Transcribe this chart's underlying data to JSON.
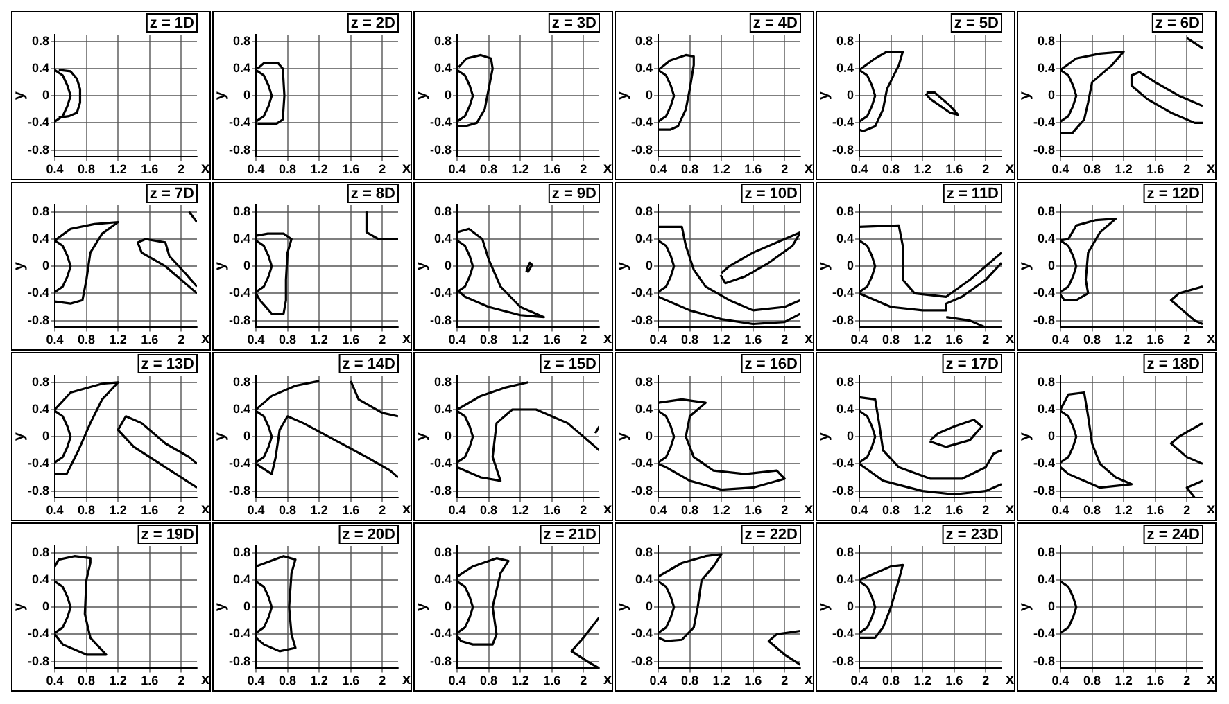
{
  "chart_data": [
    {
      "type": "line",
      "title": "z = 1D",
      "xlabel": "x",
      "ylabel": "y",
      "xlim": [
        0.4,
        2.2
      ],
      "ylim": [
        -0.9,
        0.9
      ],
      "xticks": [
        0.4,
        0.8,
        1.2,
        1.6,
        2
      ],
      "yticks": [
        0.8,
        0.4,
        0,
        -0.4,
        -0.8
      ],
      "grid": true,
      "series": [
        {
          "color": "#000000",
          "x": [
            0.4,
            0.5,
            0.56,
            0.6,
            0.56,
            0.5,
            0.4
          ],
          "values": [
            0.38,
            0.3,
            0.15,
            0,
            -0.15,
            -0.3,
            -0.38
          ]
        },
        {
          "color": "#000000",
          "x": [
            0.45,
            0.6,
            0.68,
            0.72,
            0.72,
            0.68,
            0.58,
            0.45
          ],
          "values": [
            0.38,
            0.36,
            0.25,
            0.1,
            -0.1,
            -0.25,
            -0.3,
            -0.32
          ]
        }
      ]
    },
    {
      "type": "line",
      "title": "z = 2D",
      "xlabel": "x",
      "ylabel": "y",
      "xlim": [
        0.4,
        2.2
      ],
      "ylim": [
        -0.9,
        0.9
      ],
      "xticks": [
        0.4,
        0.8,
        1.2,
        1.6,
        2
      ],
      "yticks": [
        0.8,
        0.4,
        0,
        -0.4,
        -0.8
      ],
      "grid": true,
      "series": [
        {
          "color": "#000000",
          "x": [
            0.4,
            0.5,
            0.56,
            0.6,
            0.56,
            0.5,
            0.4
          ],
          "values": [
            0.38,
            0.3,
            0.15,
            0,
            -0.15,
            -0.3,
            -0.38
          ]
        },
        {
          "color": "#000000",
          "x": [
            0.42,
            0.5,
            0.68,
            0.74,
            0.76,
            0.74,
            0.65,
            0.42
          ],
          "values": [
            0.4,
            0.48,
            0.48,
            0.4,
            0,
            -0.35,
            -0.42,
            -0.42
          ]
        }
      ]
    },
    {
      "type": "line",
      "title": "z = 3D",
      "xlabel": "x",
      "ylabel": "y",
      "xlim": [
        0.4,
        2.2
      ],
      "ylim": [
        -0.9,
        0.9
      ],
      "xticks": [
        0.4,
        0.8,
        1.2,
        1.6,
        2
      ],
      "yticks": [
        0.8,
        0.4,
        0,
        -0.4,
        -0.8
      ],
      "grid": true,
      "series": [
        {
          "color": "#000000",
          "x": [
            0.4,
            0.5,
            0.56,
            0.6,
            0.56,
            0.5,
            0.4
          ],
          "values": [
            0.38,
            0.3,
            0.15,
            0,
            -0.15,
            -0.3,
            -0.38
          ]
        },
        {
          "color": "#000000",
          "x": [
            0.42,
            0.52,
            0.7,
            0.83,
            0.85,
            0.8,
            0.75,
            0.65,
            0.5,
            0.4
          ],
          "values": [
            0.42,
            0.55,
            0.6,
            0.55,
            0.4,
            0.1,
            -0.2,
            -0.4,
            -0.45,
            -0.45
          ]
        }
      ]
    },
    {
      "type": "line",
      "title": "z = 4D",
      "xlabel": "x",
      "ylabel": "y",
      "xlim": [
        0.4,
        2.2
      ],
      "ylim": [
        -0.9,
        0.9
      ],
      "xticks": [
        0.4,
        0.8,
        1.2,
        1.6,
        2
      ],
      "yticks": [
        0.8,
        0.4,
        0,
        -0.4,
        -0.8
      ],
      "grid": true,
      "series": [
        {
          "color": "#000000",
          "x": [
            0.4,
            0.5,
            0.56,
            0.6,
            0.56,
            0.5,
            0.4
          ],
          "values": [
            0.38,
            0.3,
            0.15,
            0,
            -0.15,
            -0.3,
            -0.38
          ]
        },
        {
          "color": "#000000",
          "x": [
            0.4,
            0.55,
            0.75,
            0.85,
            0.85,
            0.8,
            0.75,
            0.65,
            0.55,
            0.4
          ],
          "values": [
            0.38,
            0.52,
            0.6,
            0.58,
            0.45,
            0.1,
            -0.2,
            -0.45,
            -0.5,
            -0.5
          ]
        }
      ]
    },
    {
      "type": "line",
      "title": "z = 5D",
      "xlabel": "x",
      "ylabel": "y",
      "xlim": [
        0.4,
        2.2
      ],
      "ylim": [
        -0.9,
        0.9
      ],
      "xticks": [
        0.4,
        0.8,
        1.2,
        1.6,
        2
      ],
      "yticks": [
        0.8,
        0.4,
        0,
        -0.4,
        -0.8
      ],
      "grid": true,
      "series": [
        {
          "color": "#000000",
          "x": [
            0.4,
            0.5,
            0.56,
            0.6,
            0.56,
            0.5,
            0.4
          ],
          "values": [
            0.38,
            0.3,
            0.15,
            0,
            -0.15,
            -0.3,
            -0.38
          ]
        },
        {
          "color": "#000000",
          "x": [
            0.4,
            0.6,
            0.75,
            0.95,
            0.9,
            0.75,
            0.7,
            0.6,
            0.45,
            0.4
          ],
          "values": [
            0.38,
            0.55,
            0.65,
            0.65,
            0.45,
            0.1,
            -0.2,
            -0.45,
            -0.52,
            -0.5
          ]
        },
        {
          "color": "#000000",
          "x": [
            1.25,
            1.35,
            1.55,
            1.65,
            1.55,
            1.3,
            1.24
          ],
          "values": [
            0.05,
            0.05,
            -0.15,
            -0.28,
            -0.25,
            -0.05,
            0.03
          ]
        }
      ]
    },
    {
      "type": "line",
      "title": "z = 6D",
      "xlabel": "x",
      "ylabel": "y",
      "xlim": [
        0.4,
        2.2
      ],
      "ylim": [
        -0.9,
        0.9
      ],
      "xticks": [
        0.4,
        0.8,
        1.2,
        1.6,
        2
      ],
      "yticks": [
        0.8,
        0.4,
        0,
        -0.4,
        -0.8
      ],
      "grid": true,
      "series": [
        {
          "color": "#000000",
          "x": [
            0.4,
            0.5,
            0.56,
            0.6,
            0.56,
            0.5,
            0.4
          ],
          "values": [
            0.38,
            0.3,
            0.15,
            0,
            -0.15,
            -0.3,
            -0.38
          ]
        },
        {
          "color": "#000000",
          "x": [
            0.4,
            0.6,
            0.9,
            1.2,
            1.05,
            0.8,
            0.75,
            0.7,
            0.55,
            0.4
          ],
          "values": [
            0.38,
            0.55,
            0.62,
            0.65,
            0.45,
            0.2,
            -0.1,
            -0.35,
            -0.55,
            -0.55
          ]
        },
        {
          "color": "#000000",
          "x": [
            2.2,
            1.9,
            1.6,
            1.4,
            1.3,
            1.3,
            1.5,
            1.8,
            2.1,
            2.2
          ],
          "values": [
            -0.15,
            0,
            0.2,
            0.35,
            0.3,
            0.15,
            -0.05,
            -0.25,
            -0.4,
            -0.4
          ]
        },
        {
          "color": "#000000",
          "x": [
            2,
            2.2
          ],
          "values": [
            0.85,
            0.7
          ]
        }
      ]
    },
    {
      "type": "line",
      "title": "z = 7D",
      "xlabel": "x",
      "ylabel": "y",
      "xlim": [
        0.4,
        2.2
      ],
      "ylim": [
        -0.9,
        0.9
      ],
      "xticks": [
        0.4,
        0.8,
        1.2,
        1.6,
        2
      ],
      "yticks": [
        0.8,
        0.4,
        0,
        -0.4,
        -0.8
      ],
      "grid": true,
      "series": [
        {
          "color": "#000000",
          "x": [
            0.4,
            0.5,
            0.56,
            0.6,
            0.56,
            0.5,
            0.4
          ],
          "values": [
            0.38,
            0.3,
            0.15,
            0,
            -0.15,
            -0.3,
            -0.38
          ]
        },
        {
          "color": "#000000",
          "x": [
            0.4,
            0.6,
            0.9,
            1.2,
            1,
            0.85,
            0.8,
            0.75,
            0.6,
            0.4
          ],
          "values": [
            0.38,
            0.55,
            0.62,
            0.65,
            0.48,
            0.2,
            -0.2,
            -0.5,
            -0.55,
            -0.52
          ]
        },
        {
          "color": "#000000",
          "x": [
            2.2,
            2.05,
            1.85,
            1.8,
            1.55,
            1.45,
            1.5,
            1.8,
            2.1,
            2.2
          ],
          "values": [
            -0.3,
            -0.1,
            0.15,
            0.35,
            0.4,
            0.35,
            0.2,
            0,
            -0.3,
            -0.4
          ]
        },
        {
          "color": "#000000",
          "x": [
            2.1,
            2.2
          ],
          "values": [
            0.8,
            0.65
          ]
        }
      ]
    },
    {
      "type": "line",
      "title": "z = 8D",
      "xlabel": "x",
      "ylabel": "y",
      "xlim": [
        0.4,
        2.2
      ],
      "ylim": [
        -0.9,
        0.9
      ],
      "xticks": [
        0.4,
        0.8,
        1.2,
        1.6,
        2
      ],
      "yticks": [
        0.8,
        0.4,
        0,
        -0.4,
        -0.8
      ],
      "grid": true,
      "series": [
        {
          "color": "#000000",
          "x": [
            0.4,
            0.5,
            0.56,
            0.6,
            0.56,
            0.5,
            0.4
          ],
          "values": [
            0.38,
            0.3,
            0.15,
            0,
            -0.15,
            -0.3,
            -0.38
          ]
        },
        {
          "color": "#000000",
          "x": [
            0.4,
            0.55,
            0.75,
            0.85,
            0.8,
            0.78,
            0.78,
            0.75,
            0.6,
            0.45,
            0.4
          ],
          "values": [
            0.45,
            0.48,
            0.48,
            0.4,
            0.2,
            -0.2,
            -0.5,
            -0.7,
            -0.7,
            -0.5,
            -0.4
          ]
        },
        {
          "color": "#000000",
          "x": [
            1.8,
            1.8,
            1.95,
            2.2
          ],
          "values": [
            0.8,
            0.5,
            0.4,
            0.4
          ]
        }
      ]
    },
    {
      "type": "line",
      "title": "z = 9D",
      "xlabel": "x",
      "ylabel": "y",
      "xlim": [
        0.4,
        2.2
      ],
      "ylim": [
        -0.9,
        0.9
      ],
      "xticks": [
        0.4,
        0.8,
        1.2,
        1.6,
        2
      ],
      "yticks": [
        0.8,
        0.4,
        0,
        -0.4,
        -0.8
      ],
      "grid": true,
      "series": [
        {
          "color": "#000000",
          "x": [
            0.4,
            0.5,
            0.56,
            0.6,
            0.56,
            0.5,
            0.4
          ],
          "values": [
            0.38,
            0.3,
            0.15,
            0,
            -0.15,
            -0.3,
            -0.38
          ]
        },
        {
          "color": "#000000",
          "x": [
            0.4,
            0.55,
            0.72,
            0.8,
            0.95,
            1.2,
            1.5,
            1.2,
            0.8,
            0.5,
            0.4
          ],
          "values": [
            0.5,
            0.55,
            0.4,
            0.1,
            -0.3,
            -0.6,
            -0.75,
            -0.72,
            -0.6,
            -0.45,
            -0.35
          ]
        },
        {
          "color": "#000000",
          "x": [
            1.28,
            1.32,
            1.35,
            1.3,
            1.27
          ],
          "values": [
            -0.05,
            0.05,
            0.02,
            -0.08,
            -0.06
          ]
        }
      ]
    },
    {
      "type": "line",
      "title": "z = 10D",
      "xlabel": "x",
      "ylabel": "y",
      "xlim": [
        0.4,
        2.2
      ],
      "ylim": [
        -0.9,
        0.9
      ],
      "xticks": [
        0.4,
        0.8,
        1.2,
        1.6,
        2
      ],
      "yticks": [
        0.8,
        0.4,
        0,
        -0.4,
        -0.8
      ],
      "grid": true,
      "series": [
        {
          "color": "#000000",
          "x": [
            0.4,
            0.5,
            0.56,
            0.6,
            0.56,
            0.5,
            0.4
          ],
          "values": [
            0.38,
            0.3,
            0.15,
            0,
            -0.15,
            -0.3,
            -0.38
          ]
        },
        {
          "color": "#000000",
          "x": [
            0.4,
            0.7,
            0.75,
            0.85,
            1,
            1.3,
            1.6,
            2,
            2.2
          ],
          "values": [
            0.58,
            0.58,
            0.3,
            -0.05,
            -0.3,
            -0.5,
            -0.65,
            -0.6,
            -0.5
          ]
        },
        {
          "color": "#000000",
          "x": [
            0.4,
            0.8,
            1.2,
            1.6,
            2,
            2.2
          ],
          "values": [
            -0.45,
            -0.65,
            -0.78,
            -0.85,
            -0.82,
            -0.7
          ]
        },
        {
          "color": "#000000",
          "x": [
            1.2,
            1.3,
            1.6,
            2,
            2.2,
            2.1,
            1.8,
            1.5,
            1.25,
            1.19
          ],
          "values": [
            -0.1,
            0,
            0.2,
            0.4,
            0.5,
            0.3,
            0.05,
            -0.15,
            -0.25,
            -0.13
          ]
        }
      ]
    },
    {
      "type": "line",
      "title": "z = 11D",
      "xlabel": "x",
      "ylabel": "y",
      "xlim": [
        0.4,
        2.2
      ],
      "ylim": [
        -0.9,
        0.9
      ],
      "xticks": [
        0.4,
        0.8,
        1.2,
        1.6,
        2
      ],
      "yticks": [
        0.8,
        0.4,
        0,
        -0.4,
        -0.8
      ],
      "grid": true,
      "series": [
        {
          "color": "#000000",
          "x": [
            0.4,
            0.5,
            0.56,
            0.6,
            0.56,
            0.5,
            0.4
          ],
          "values": [
            0.38,
            0.3,
            0.15,
            0,
            -0.15,
            -0.3,
            -0.38
          ]
        },
        {
          "color": "#000000",
          "x": [
            0.4,
            0.9,
            0.95,
            0.95,
            1.1,
            1.5,
            1.8,
            2.2
          ],
          "values": [
            0.58,
            0.6,
            0.3,
            -0.2,
            -0.4,
            -0.45,
            -0.2,
            0.2
          ]
        },
        {
          "color": "#000000",
          "x": [
            0.4,
            0.8,
            1.2,
            1.5,
            1.5,
            1.7,
            2,
            2.2
          ],
          "values": [
            -0.4,
            -0.6,
            -0.65,
            -0.65,
            -0.55,
            -0.45,
            -0.2,
            0.05
          ]
        },
        {
          "color": "#000000",
          "x": [
            1.5,
            1.8,
            2
          ],
          "values": [
            -0.75,
            -0.8,
            -0.9
          ]
        }
      ]
    },
    {
      "type": "line",
      "title": "z = 12D",
      "xlabel": "x",
      "ylabel": "y",
      "xlim": [
        0.4,
        2.2
      ],
      "ylim": [
        -0.9,
        0.9
      ],
      "xticks": [
        0.4,
        0.8,
        1.2,
        1.6,
        2
      ],
      "yticks": [
        0.8,
        0.4,
        0,
        -0.4,
        -0.8
      ],
      "grid": true,
      "series": [
        {
          "color": "#000000",
          "x": [
            0.4,
            0.5,
            0.56,
            0.6,
            0.56,
            0.5,
            0.4
          ],
          "values": [
            0.38,
            0.3,
            0.15,
            0,
            -0.15,
            -0.3,
            -0.38
          ]
        },
        {
          "color": "#000000",
          "x": [
            0.4,
            0.5,
            0.6,
            0.85,
            1.1,
            0.9,
            0.75,
            0.72,
            0.75,
            0.6,
            0.45,
            0.4
          ],
          "values": [
            0.38,
            0.4,
            0.6,
            0.68,
            0.7,
            0.5,
            0.2,
            -0.2,
            -0.4,
            -0.5,
            -0.5,
            -0.42
          ]
        },
        {
          "color": "#000000",
          "x": [
            2.2,
            1.9,
            1.8,
            2.1,
            2.2
          ],
          "values": [
            -0.3,
            -0.4,
            -0.5,
            -0.8,
            -0.85
          ]
        }
      ]
    },
    {
      "type": "line",
      "title": "z = 13D",
      "xlabel": "x",
      "ylabel": "y",
      "xlim": [
        0.4,
        2.2
      ],
      "ylim": [
        -0.9,
        0.9
      ],
      "xticks": [
        0.4,
        0.8,
        1.2,
        1.6,
        2
      ],
      "yticks": [
        0.8,
        0.4,
        0,
        -0.4,
        -0.8
      ],
      "grid": true,
      "series": [
        {
          "color": "#000000",
          "x": [
            0.4,
            0.5,
            0.56,
            0.6,
            0.56,
            0.5,
            0.4
          ],
          "values": [
            0.38,
            0.3,
            0.15,
            0,
            -0.15,
            -0.3,
            -0.38
          ]
        },
        {
          "color": "#000000",
          "x": [
            0.4,
            0.6,
            1,
            1.2,
            1,
            0.85,
            0.7,
            0.55,
            0.4
          ],
          "values": [
            0.4,
            0.65,
            0.78,
            0.8,
            0.55,
            0.2,
            -0.2,
            -0.55,
            -0.55
          ]
        },
        {
          "color": "#000000",
          "x": [
            2.2,
            2.1,
            1.8,
            1.5,
            1.3,
            1.2,
            1.4,
            1.8,
            2.2
          ],
          "values": [
            -0.4,
            -0.3,
            -0.1,
            0.2,
            0.3,
            0.1,
            -0.15,
            -0.45,
            -0.75
          ]
        }
      ]
    },
    {
      "type": "line",
      "title": "z = 14D",
      "xlabel": "x",
      "ylabel": "y",
      "xlim": [
        0.4,
        2.2
      ],
      "ylim": [
        -0.9,
        0.9
      ],
      "xticks": [
        0.4,
        0.8,
        1.2,
        1.6,
        2
      ],
      "yticks": [
        0.8,
        0.4,
        0,
        -0.4,
        -0.8
      ],
      "grid": true,
      "series": [
        {
          "color": "#000000",
          "x": [
            0.4,
            0.5,
            0.56,
            0.6,
            0.56,
            0.5,
            0.4
          ],
          "values": [
            0.38,
            0.3,
            0.15,
            0,
            -0.15,
            -0.3,
            -0.38
          ]
        },
        {
          "color": "#000000",
          "x": [
            0.4,
            0.6,
            0.65,
            0.7,
            0.8,
            1,
            1.4,
            1.8,
            2.1,
            2.2
          ],
          "values": [
            -0.4,
            -0.55,
            -0.3,
            0.1,
            0.3,
            0.2,
            -0.05,
            -0.3,
            -0.5,
            -0.6
          ]
        },
        {
          "color": "#000000",
          "x": [
            0.4,
            0.6,
            0.9,
            1.2
          ],
          "values": [
            0.4,
            0.6,
            0.75,
            0.82
          ]
        },
        {
          "color": "#000000",
          "x": [
            1.6,
            1.7,
            2,
            2.2
          ],
          "values": [
            0.82,
            0.55,
            0.35,
            0.3
          ]
        }
      ]
    },
    {
      "type": "line",
      "title": "z = 15D",
      "xlabel": "x",
      "ylabel": "y",
      "xlim": [
        0.4,
        2.2
      ],
      "ylim": [
        -0.9,
        0.9
      ],
      "xticks": [
        0.4,
        0.8,
        1.2,
        1.6,
        2
      ],
      "yticks": [
        0.8,
        0.4,
        0,
        -0.4,
        -0.8
      ],
      "grid": true,
      "series": [
        {
          "color": "#000000",
          "x": [
            0.4,
            0.5,
            0.56,
            0.6,
            0.56,
            0.5,
            0.4
          ],
          "values": [
            0.38,
            0.3,
            0.15,
            0,
            -0.15,
            -0.3,
            -0.38
          ]
        },
        {
          "color": "#000000",
          "x": [
            0.4,
            0.7,
            1,
            1.3
          ],
          "values": [
            0.4,
            0.6,
            0.72,
            0.8
          ]
        },
        {
          "color": "#000000",
          "x": [
            0.4,
            0.7,
            0.95,
            0.85,
            0.9,
            1.1,
            1.4,
            1.8,
            2.2
          ],
          "values": [
            -0.45,
            -0.6,
            -0.65,
            -0.3,
            0.2,
            0.4,
            0.4,
            0.2,
            -0.2
          ]
        },
        {
          "color": "#000000",
          "x": [
            2.15,
            2.2
          ],
          "values": [
            0.05,
            0.15
          ]
        }
      ]
    },
    {
      "type": "line",
      "title": "z = 16D",
      "xlabel": "x",
      "ylabel": "y",
      "xlim": [
        0.4,
        2.2
      ],
      "ylim": [
        -0.9,
        0.9
      ],
      "xticks": [
        0.4,
        0.8,
        1.2,
        1.6,
        2
      ],
      "yticks": [
        0.8,
        0.4,
        0,
        -0.4,
        -0.8
      ],
      "grid": true,
      "series": [
        {
          "color": "#000000",
          "x": [
            0.4,
            0.5,
            0.56,
            0.6,
            0.56,
            0.5,
            0.4
          ],
          "values": [
            0.38,
            0.3,
            0.15,
            0,
            -0.15,
            -0.3,
            -0.38
          ]
        },
        {
          "color": "#000000",
          "x": [
            0.4,
            0.7,
            1,
            0.8,
            0.75,
            0.85,
            1.1,
            1.5,
            1.9,
            2,
            1.6,
            1.2,
            0.8,
            0.5,
            0.4
          ],
          "values": [
            0.5,
            0.55,
            0.5,
            0.3,
            0,
            -0.3,
            -0.5,
            -0.55,
            -0.5,
            -0.62,
            -0.75,
            -0.78,
            -0.65,
            -0.45,
            -0.4
          ]
        }
      ]
    },
    {
      "type": "line",
      "title": "z = 17D",
      "xlabel": "x",
      "ylabel": "y",
      "xlim": [
        0.4,
        2.2
      ],
      "ylim": [
        -0.9,
        0.9
      ],
      "xticks": [
        0.4,
        0.8,
        1.2,
        1.6,
        2
      ],
      "yticks": [
        0.8,
        0.4,
        0,
        -0.4,
        -0.8
      ],
      "grid": true,
      "series": [
        {
          "color": "#000000",
          "x": [
            0.4,
            0.5,
            0.56,
            0.6,
            0.56,
            0.5,
            0.4
          ],
          "values": [
            0.38,
            0.3,
            0.15,
            0,
            -0.15,
            -0.3,
            -0.38
          ]
        },
        {
          "color": "#000000",
          "x": [
            0.4,
            0.6,
            0.65,
            0.7,
            0.9,
            1.3,
            1.7,
            2,
            2.1,
            2.2
          ],
          "values": [
            0.58,
            0.55,
            0.2,
            -0.2,
            -0.45,
            -0.62,
            -0.62,
            -0.45,
            -0.25,
            -0.2
          ]
        },
        {
          "color": "#000000",
          "x": [
            0.4,
            0.7,
            1.2,
            1.6,
            2,
            2.2
          ],
          "values": [
            -0.4,
            -0.65,
            -0.8,
            -0.85,
            -0.8,
            -0.7
          ]
        },
        {
          "color": "#000000",
          "x": [
            1.3,
            1.4,
            1.6,
            1.85,
            1.95,
            1.8,
            1.5,
            1.29
          ],
          "values": [
            -0.05,
            0.05,
            0.15,
            0.25,
            0.15,
            -0.05,
            -0.15,
            -0.07
          ]
        }
      ]
    },
    {
      "type": "line",
      "title": "z = 18D",
      "xlabel": "x",
      "ylabel": "y",
      "xlim": [
        0.4,
        2.2
      ],
      "ylim": [
        -0.9,
        0.9
      ],
      "xticks": [
        0.4,
        0.8,
        1.2,
        1.6,
        2
      ],
      "yticks": [
        0.8,
        0.4,
        0,
        -0.4,
        -0.8
      ],
      "grid": true,
      "series": [
        {
          "color": "#000000",
          "x": [
            0.4,
            0.5,
            0.56,
            0.6,
            0.56,
            0.5,
            0.4
          ],
          "values": [
            0.38,
            0.3,
            0.15,
            0,
            -0.15,
            -0.3,
            -0.38
          ]
        },
        {
          "color": "#000000",
          "x": [
            0.4,
            0.5,
            0.7,
            0.75,
            0.8,
            0.9,
            1.1,
            1.3,
            0.9,
            0.5,
            0.4
          ],
          "values": [
            0.4,
            0.62,
            0.65,
            0.3,
            -0.1,
            -0.4,
            -0.6,
            -0.7,
            -0.75,
            -0.55,
            -0.45
          ]
        },
        {
          "color": "#000000",
          "x": [
            2.2,
            1.9,
            1.8,
            2,
            2.2
          ],
          "values": [
            0.2,
            0,
            -0.1,
            -0.3,
            -0.4
          ]
        },
        {
          "color": "#000000",
          "x": [
            2.2,
            2,
            2.1
          ],
          "values": [
            -0.65,
            -0.75,
            -0.9
          ]
        }
      ]
    },
    {
      "type": "line",
      "title": "z = 19D",
      "xlabel": "x",
      "ylabel": "y",
      "xlim": [
        0.4,
        2.2
      ],
      "ylim": [
        -0.9,
        0.9
      ],
      "xticks": [
        0.4,
        0.8,
        1.2,
        1.6,
        2
      ],
      "yticks": [
        0.8,
        0.4,
        0,
        -0.4,
        -0.8
      ],
      "grid": true,
      "series": [
        {
          "color": "#000000",
          "x": [
            0.4,
            0.5,
            0.56,
            0.6,
            0.56,
            0.5,
            0.4
          ],
          "values": [
            0.38,
            0.3,
            0.15,
            0,
            -0.15,
            -0.3,
            -0.38
          ]
        },
        {
          "color": "#000000",
          "x": [
            0.4,
            0.45,
            0.65,
            0.85,
            0.85,
            0.8,
            0.78,
            0.85,
            1.05,
            0.8,
            0.5,
            0.4
          ],
          "values": [
            0.6,
            0.7,
            0.75,
            0.72,
            0.65,
            0.4,
            -0.1,
            -0.45,
            -0.7,
            -0.7,
            -0.55,
            -0.4
          ]
        }
      ]
    },
    {
      "type": "line",
      "title": "z = 20D",
      "xlabel": "x",
      "ylabel": "y",
      "xlim": [
        0.4,
        2.2
      ],
      "ylim": [
        -0.9,
        0.9
      ],
      "xticks": [
        0.4,
        0.8,
        1.2,
        1.6,
        2
      ],
      "yticks": [
        0.8,
        0.4,
        0,
        -0.4,
        -0.8
      ],
      "grid": true,
      "series": [
        {
          "color": "#000000",
          "x": [
            0.4,
            0.5,
            0.56,
            0.6,
            0.56,
            0.5,
            0.4
          ],
          "values": [
            0.38,
            0.3,
            0.15,
            0,
            -0.15,
            -0.3,
            -0.38
          ]
        },
        {
          "color": "#000000",
          "x": [
            0.4,
            0.75,
            0.9,
            0.85,
            0.82,
            0.85,
            0.9,
            0.7,
            0.5,
            0.4
          ],
          "values": [
            0.6,
            0.75,
            0.7,
            0.5,
            0,
            -0.4,
            -0.6,
            -0.65,
            -0.55,
            -0.45
          ]
        }
      ]
    },
    {
      "type": "line",
      "title": "z = 21D",
      "xlabel": "x",
      "ylabel": "y",
      "xlim": [
        0.4,
        2.2
      ],
      "ylim": [
        -0.9,
        0.9
      ],
      "xticks": [
        0.4,
        0.8,
        1.2,
        1.6,
        2
      ],
      "yticks": [
        0.8,
        0.4,
        0,
        -0.4,
        -0.8
      ],
      "grid": true,
      "series": [
        {
          "color": "#000000",
          "x": [
            0.4,
            0.5,
            0.56,
            0.6,
            0.56,
            0.5,
            0.4
          ],
          "values": [
            0.38,
            0.3,
            0.15,
            0,
            -0.15,
            -0.3,
            -0.38
          ]
        },
        {
          "color": "#000000",
          "x": [
            0.4,
            0.6,
            0.9,
            1.05,
            0.95,
            0.85,
            0.9,
            0.85,
            0.6,
            0.45,
            0.4
          ],
          "values": [
            0.45,
            0.6,
            0.72,
            0.68,
            0.5,
            0,
            -0.4,
            -0.55,
            -0.55,
            -0.5,
            -0.42
          ]
        },
        {
          "color": "#000000",
          "x": [
            2.2,
            2,
            1.85,
            2.05,
            2.2
          ],
          "values": [
            -0.15,
            -0.45,
            -0.65,
            -0.8,
            -0.9
          ]
        }
      ]
    },
    {
      "type": "line",
      "title": "z = 22D",
      "xlabel": "x",
      "ylabel": "y",
      "xlim": [
        0.4,
        2.2
      ],
      "ylim": [
        -0.9,
        0.9
      ],
      "xticks": [
        0.4,
        0.8,
        1.2,
        1.6,
        2
      ],
      "yticks": [
        0.8,
        0.4,
        0,
        -0.4,
        -0.8
      ],
      "grid": true,
      "series": [
        {
          "color": "#000000",
          "x": [
            0.4,
            0.5,
            0.56,
            0.6,
            0.56,
            0.5,
            0.4
          ],
          "values": [
            0.38,
            0.3,
            0.15,
            0,
            -0.15,
            -0.3,
            -0.38
          ]
        },
        {
          "color": "#000000",
          "x": [
            0.4,
            0.7,
            1,
            1.2,
            1.1,
            0.95,
            0.9,
            0.85,
            0.7,
            0.5,
            0.4
          ],
          "values": [
            0.45,
            0.65,
            0.75,
            0.78,
            0.6,
            0.4,
            0,
            -0.3,
            -0.48,
            -0.5,
            -0.45
          ]
        },
        {
          "color": "#000000",
          "x": [
            2.2,
            1.9,
            1.8,
            2,
            2.2
          ],
          "values": [
            -0.35,
            -0.4,
            -0.5,
            -0.7,
            -0.85
          ]
        }
      ]
    },
    {
      "type": "line",
      "title": "z = 23D",
      "xlabel": "x",
      "ylabel": "y",
      "xlim": [
        0.4,
        2.2
      ],
      "ylim": [
        -0.9,
        0.9
      ],
      "xticks": [
        0.4,
        0.8,
        1.2,
        1.6,
        2
      ],
      "yticks": [
        0.8,
        0.4,
        0,
        -0.4,
        -0.8
      ],
      "grid": true,
      "series": [
        {
          "color": "#000000",
          "x": [
            0.4,
            0.5,
            0.56,
            0.6,
            0.56,
            0.5,
            0.4
          ],
          "values": [
            0.38,
            0.3,
            0.15,
            0,
            -0.15,
            -0.3,
            -0.38
          ]
        },
        {
          "color": "#000000",
          "x": [
            0.4,
            0.6,
            0.8,
            0.95,
            0.9,
            0.8,
            0.7,
            0.6,
            0.4
          ],
          "values": [
            0.4,
            0.5,
            0.6,
            0.62,
            0.4,
            0,
            -0.3,
            -0.45,
            -0.45
          ]
        }
      ]
    },
    {
      "type": "line",
      "title": "z = 24D",
      "xlabel": "x",
      "ylabel": "y",
      "xlim": [
        0.4,
        2.2
      ],
      "ylim": [
        -0.9,
        0.9
      ],
      "xticks": [
        0.4,
        0.8,
        1.2,
        1.6,
        2
      ],
      "yticks": [
        0.8,
        0.4,
        0,
        -0.4,
        -0.8
      ],
      "grid": true,
      "series": [
        {
          "color": "#000000",
          "x": [
            0.4,
            0.5,
            0.56,
            0.6,
            0.56,
            0.5,
            0.4
          ],
          "values": [
            0.38,
            0.3,
            0.15,
            0,
            -0.15,
            -0.3,
            -0.38
          ]
        }
      ]
    }
  ]
}
